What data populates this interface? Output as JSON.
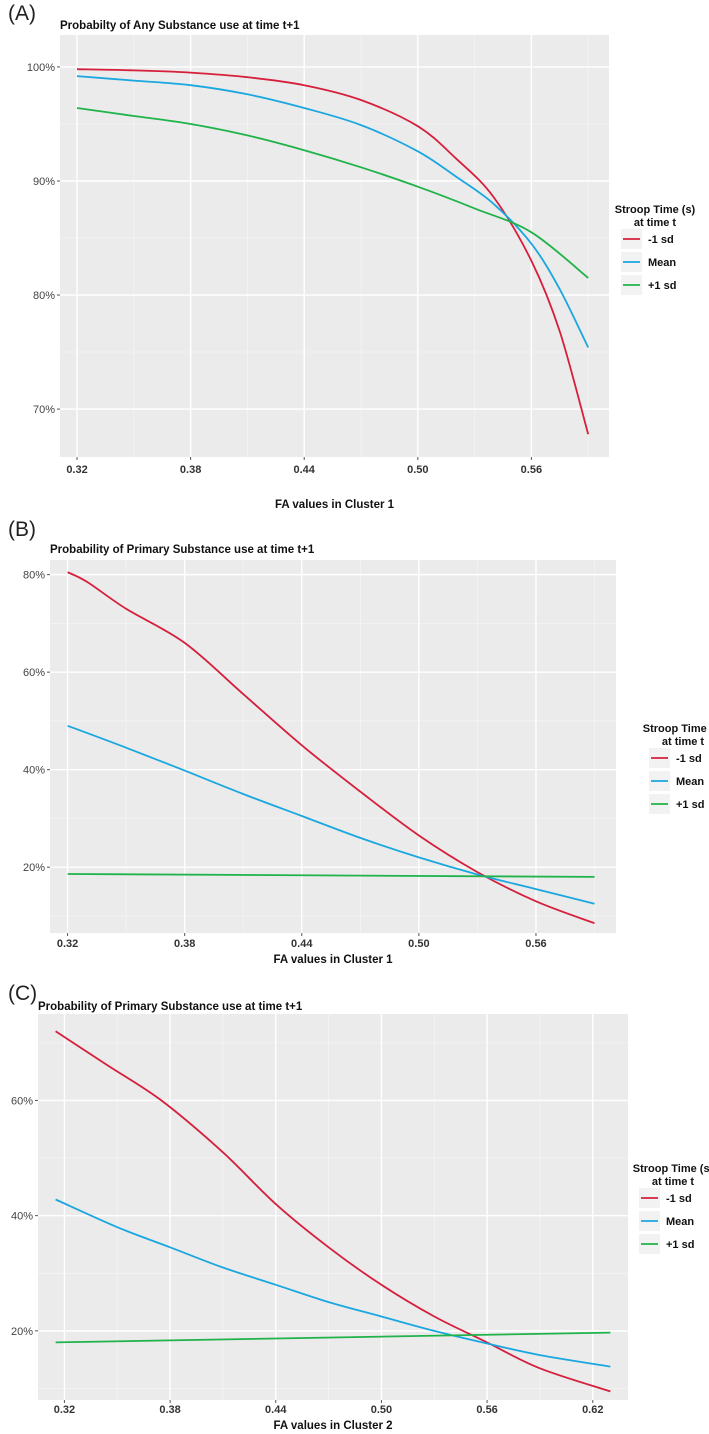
{
  "colors": {
    "panel_bg": "#ebebeb",
    "grid_major": "#ffffff",
    "grid_minor": "#f5f5f5",
    "series": [
      "#d61f3c",
      "#1aa7e0",
      "#1fb34a"
    ]
  },
  "chart_data": [
    {
      "panel": "(A)",
      "type": "line",
      "title": "Probabilty of Any Substance use at time t+1",
      "xlabel": "FA values in Cluster 1",
      "ylabel": "",
      "xlim": [
        0.311,
        0.601
      ],
      "ylim": [
        65.8,
        102.8
      ],
      "xticks": [
        0.32,
        0.38,
        0.44,
        0.5,
        0.56
      ],
      "xtick_labels": [
        "0.32",
        "0.38",
        "0.44",
        "0.50",
        "0.56"
      ],
      "yticks": [
        70,
        80,
        90,
        100
      ],
      "ytick_labels": [
        "70%",
        "80%",
        "90%",
        "100%"
      ],
      "grid": true,
      "legend": {
        "title": [
          "Stroop Time (s)",
          "at time t"
        ],
        "position": "right"
      },
      "series": [
        {
          "name": "-1 sd",
          "x": [
            0.32,
            0.35,
            0.38,
            0.41,
            0.44,
            0.47,
            0.5,
            0.52,
            0.54,
            0.56,
            0.575,
            0.59
          ],
          "y": [
            99.8,
            99.7,
            99.5,
            99.1,
            98.4,
            97.1,
            94.8,
            92.0,
            88.6,
            83.0,
            76.8,
            67.8
          ]
        },
        {
          "name": "Mean",
          "x": [
            0.32,
            0.35,
            0.38,
            0.41,
            0.44,
            0.47,
            0.5,
            0.52,
            0.54,
            0.56,
            0.575,
            0.59
          ],
          "y": [
            99.2,
            98.8,
            98.4,
            97.6,
            96.4,
            94.9,
            92.6,
            90.4,
            88.0,
            84.5,
            80.5,
            75.4
          ]
        },
        {
          "name": "+1 sd",
          "x": [
            0.32,
            0.35,
            0.38,
            0.41,
            0.44,
            0.47,
            0.5,
            0.53,
            0.56,
            0.59
          ],
          "y": [
            96.4,
            95.7,
            95.0,
            94.0,
            92.7,
            91.2,
            89.5,
            87.6,
            85.5,
            81.5
          ]
        }
      ]
    },
    {
      "panel": "(B)",
      "type": "line",
      "title": "Probability of Primary Substance use at time t+1",
      "xlabel": "FA values in Cluster 1",
      "ylabel": "",
      "xlim": [
        0.311,
        0.601
      ],
      "ylim": [
        6.5,
        83
      ],
      "xticks": [
        0.32,
        0.38,
        0.44,
        0.5,
        0.56
      ],
      "xtick_labels": [
        "0.32",
        "0.38",
        "0.44",
        "0.50",
        "0.56"
      ],
      "yticks": [
        20,
        40,
        60,
        80
      ],
      "ytick_labels": [
        "20%",
        "40%",
        "60%",
        "80%"
      ],
      "grid": true,
      "legend": {
        "title": [
          "Stroop Time (s)",
          "at time t"
        ],
        "position": "right"
      },
      "series": [
        {
          "name": "-1 sd",
          "x": [
            0.32,
            0.33,
            0.35,
            0.38,
            0.41,
            0.44,
            0.47,
            0.5,
            0.53,
            0.56,
            0.59
          ],
          "y": [
            80.5,
            78.5,
            73.0,
            66.0,
            55.5,
            45.0,
            35.5,
            26.5,
            19.0,
            13.0,
            8.5
          ]
        },
        {
          "name": "Mean",
          "x": [
            0.32,
            0.35,
            0.38,
            0.41,
            0.44,
            0.47,
            0.5,
            0.53,
            0.56,
            0.59
          ],
          "y": [
            49.0,
            44.5,
            39.8,
            35.0,
            30.5,
            26.0,
            22.0,
            18.5,
            15.5,
            12.5
          ]
        },
        {
          "name": "+1 sd",
          "x": [
            0.32,
            0.59
          ],
          "y": [
            18.6,
            18.0
          ]
        }
      ]
    },
    {
      "panel": "(C)",
      "type": "line",
      "title": "Probability of Primary Substance use at time t+1",
      "xlabel": "FA values in Cluster 2",
      "ylabel": "",
      "xlim": [
        0.305,
        0.64
      ],
      "ylim": [
        8,
        75
      ],
      "xticks": [
        0.32,
        0.38,
        0.44,
        0.5,
        0.56,
        0.62
      ],
      "xtick_labels": [
        "0.32",
        "0.38",
        "0.44",
        "0.50",
        "0.56",
        "0.62"
      ],
      "yticks": [
        20,
        40,
        60
      ],
      "ytick_labels": [
        "20%",
        "40%",
        "60%"
      ],
      "grid": true,
      "legend": {
        "title": [
          "Stroop Time (s)",
          "at time t"
        ],
        "position": "right"
      },
      "series": [
        {
          "name": "-1 sd",
          "x": [
            0.315,
            0.345,
            0.375,
            0.41,
            0.44,
            0.47,
            0.5,
            0.53,
            0.56,
            0.59,
            0.63
          ],
          "y": [
            72.0,
            66.0,
            60.0,
            51.0,
            42.0,
            34.5,
            28.0,
            22.5,
            18.0,
            13.5,
            9.5
          ]
        },
        {
          "name": "Mean",
          "x": [
            0.315,
            0.35,
            0.38,
            0.41,
            0.44,
            0.47,
            0.5,
            0.53,
            0.56,
            0.59,
            0.63
          ],
          "y": [
            42.8,
            38.0,
            34.5,
            31.0,
            28.0,
            25.0,
            22.5,
            20.0,
            17.8,
            15.8,
            13.8
          ]
        },
        {
          "name": "+1 sd",
          "x": [
            0.315,
            0.63
          ],
          "y": [
            18.0,
            19.7
          ]
        }
      ]
    }
  ]
}
